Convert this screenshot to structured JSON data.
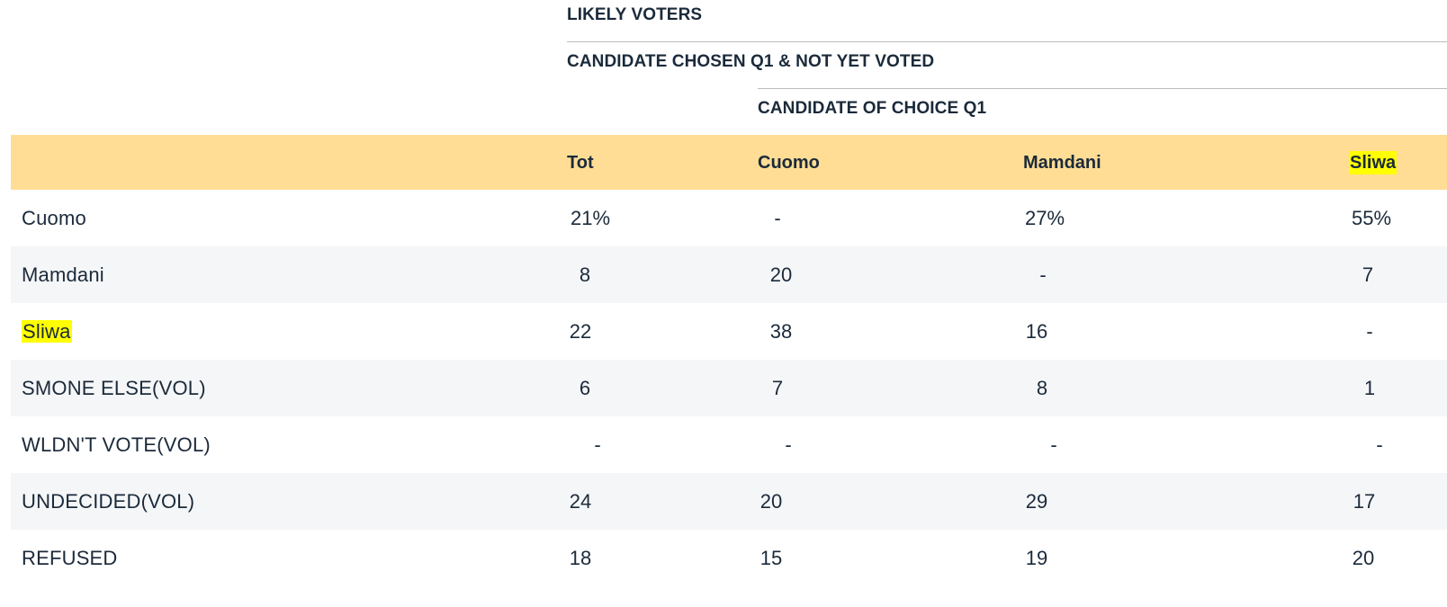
{
  "headers": {
    "level1": "LIKELY VOTERS",
    "level2": "CANDIDATE CHOSEN Q1 & NOT YET VOTED",
    "level3": "CANDIDATE OF CHOICE Q1"
  },
  "columns": [
    "Tot",
    "Cuomo",
    "Mamdani",
    "Sliwa"
  ],
  "highlight_color": "#ffff00",
  "header_band_color": "#ffdd95",
  "rows": [
    {
      "label": "Cuomo",
      "values": [
        "21%",
        "-",
        "27%",
        "55%"
      ]
    },
    {
      "label": "Mamdani",
      "values": [
        "8",
        "20",
        "-",
        "7"
      ]
    },
    {
      "label": "Sliwa",
      "values": [
        "22",
        "38",
        "16",
        "-"
      ]
    },
    {
      "label": "SMONE ELSE(VOL)",
      "values": [
        "6",
        "7",
        "8",
        "1"
      ]
    },
    {
      "label": "WLDN'T VOTE(VOL)",
      "values": [
        "-",
        "-",
        "-",
        "-"
      ]
    },
    {
      "label": "UNDECIDED(VOL)",
      "values": [
        "24",
        "20",
        "29",
        "17"
      ]
    },
    {
      "label": "REFUSED",
      "values": [
        "18",
        "15",
        "19",
        "20"
      ]
    }
  ]
}
